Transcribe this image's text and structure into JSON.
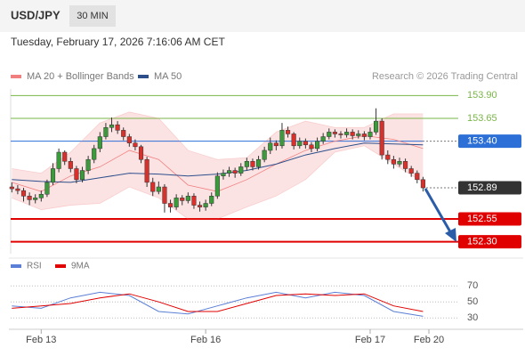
{
  "header": {
    "symbol": "USD/JPY",
    "timeframe": "30 MIN",
    "datetime": "Tuesday, February 17, 2026 7:16:06 AM CET"
  },
  "chart_data": [
    {
      "type": "candlestick",
      "attribution": "Research © 2026 Trading Central",
      "up_color": "#3a9b3a",
      "down_color": "#d9302c",
      "xlim": [
        -0.5,
        76
      ],
      "ylim": [
        152.17,
        154.02
      ],
      "xticks": [
        {
          "value": 5,
          "label": "Feb 13"
        },
        {
          "value": 33,
          "label": "Feb 16"
        },
        {
          "value": 61,
          "label": "Feb 17"
        },
        {
          "value": 71,
          "label": "Feb 20"
        }
      ],
      "levels": [
        {
          "value": 153.9,
          "label": "153.90",
          "color": "#7ab648",
          "style": "text",
          "width": 1
        },
        {
          "value": 153.65,
          "label": "153.65",
          "color": "#7ab648",
          "style": "text",
          "width": 1
        },
        {
          "value": 153.4,
          "label": "153.40",
          "color": "#2c6fd6",
          "style": "box",
          "width": 1
        },
        {
          "value": 152.89,
          "label": "152.89",
          "color": "#333333",
          "style": "box",
          "width": 0
        },
        {
          "value": 152.55,
          "label": "152.55",
          "color": "#e00000",
          "style": "box",
          "width": 2
        },
        {
          "value": 152.3,
          "label": "152.30",
          "color": "#e00000",
          "style": "box",
          "width": 2
        }
      ],
      "candles": [
        [
          152.9,
          152.95,
          152.84,
          152.88
        ],
        [
          152.88,
          152.92,
          152.82,
          152.86
        ],
        [
          152.86,
          152.89,
          152.74,
          152.8
        ],
        [
          152.8,
          152.84,
          152.7,
          152.76
        ],
        [
          152.76,
          152.82,
          152.72,
          152.78
        ],
        [
          152.78,
          152.86,
          152.74,
          152.82
        ],
        [
          152.82,
          152.98,
          152.79,
          152.95
        ],
        [
          152.95,
          153.16,
          152.92,
          153.1
        ],
        [
          153.1,
          153.32,
          153.06,
          153.28
        ],
        [
          153.28,
          153.3,
          153.14,
          153.18
        ],
        [
          153.18,
          153.22,
          153.06,
          153.1
        ],
        [
          153.1,
          153.13,
          152.94,
          152.98
        ],
        [
          152.98,
          153.12,
          152.95,
          153.08
        ],
        [
          153.08,
          153.24,
          153.04,
          153.2
        ],
        [
          153.2,
          153.36,
          153.16,
          153.32
        ],
        [
          153.32,
          153.5,
          153.28,
          153.45
        ],
        [
          153.45,
          153.6,
          153.42,
          153.55
        ],
        [
          153.55,
          153.66,
          153.5,
          153.58
        ],
        [
          153.58,
          153.62,
          153.48,
          153.52
        ],
        [
          153.52,
          153.55,
          153.41,
          153.45
        ],
        [
          153.45,
          153.48,
          153.34,
          153.38
        ],
        [
          153.38,
          153.42,
          153.3,
          153.34
        ],
        [
          153.34,
          153.36,
          153.16,
          153.2
        ],
        [
          153.2,
          153.23,
          152.9,
          152.95
        ],
        [
          152.95,
          153.0,
          152.8,
          152.85
        ],
        [
          152.85,
          152.96,
          152.82,
          152.9
        ],
        [
          152.9,
          152.93,
          152.62,
          152.72
        ],
        [
          152.72,
          152.76,
          152.62,
          152.68
        ],
        [
          152.68,
          152.82,
          152.65,
          152.78
        ],
        [
          152.78,
          152.81,
          152.7,
          152.75
        ],
        [
          152.75,
          152.84,
          152.72,
          152.8
        ],
        [
          152.8,
          152.83,
          152.66,
          152.7
        ],
        [
          152.7,
          152.74,
          152.63,
          152.68
        ],
        [
          152.68,
          152.76,
          152.64,
          152.72
        ],
        [
          152.72,
          152.84,
          152.69,
          152.8
        ],
        [
          152.8,
          153.06,
          152.77,
          153.02
        ],
        [
          153.02,
          153.09,
          152.98,
          153.05
        ],
        [
          153.05,
          153.12,
          153.01,
          153.08
        ],
        [
          153.08,
          153.11,
          153.0,
          153.05
        ],
        [
          153.05,
          153.16,
          153.02,
          153.12
        ],
        [
          153.12,
          153.22,
          153.08,
          153.18
        ],
        [
          153.18,
          153.21,
          153.08,
          153.12
        ],
        [
          153.12,
          153.24,
          153.09,
          153.2
        ],
        [
          153.2,
          153.34,
          153.17,
          153.3
        ],
        [
          153.3,
          153.44,
          153.26,
          153.38
        ],
        [
          153.38,
          153.41,
          153.3,
          153.35
        ],
        [
          153.35,
          153.6,
          153.32,
          153.52
        ],
        [
          153.52,
          153.56,
          153.44,
          153.48
        ],
        [
          153.48,
          153.5,
          153.31,
          153.35
        ],
        [
          153.35,
          153.44,
          153.32,
          153.4
        ],
        [
          153.4,
          153.43,
          153.32,
          153.36
        ],
        [
          153.36,
          153.39,
          153.28,
          153.32
        ],
        [
          153.32,
          153.44,
          153.29,
          153.4
        ],
        [
          153.4,
          153.49,
          153.37,
          153.45
        ],
        [
          153.45,
          153.54,
          153.42,
          153.5
        ],
        [
          153.5,
          153.53,
          153.44,
          153.48
        ],
        [
          153.48,
          153.51,
          153.43,
          153.47
        ],
        [
          153.47,
          153.54,
          153.44,
          153.5
        ],
        [
          153.5,
          153.53,
          153.42,
          153.46
        ],
        [
          153.46,
          153.52,
          153.43,
          153.48
        ],
        [
          153.48,
          153.51,
          153.41,
          153.45
        ],
        [
          153.45,
          153.55,
          153.42,
          153.5
        ],
        [
          153.5,
          153.76,
          153.47,
          153.62
        ],
        [
          153.62,
          153.65,
          153.2,
          153.25
        ],
        [
          153.25,
          153.3,
          153.15,
          153.2
        ],
        [
          153.2,
          153.24,
          153.1,
          153.15
        ],
        [
          153.15,
          153.22,
          153.12,
          153.18
        ],
        [
          153.18,
          153.21,
          153.06,
          153.1
        ],
        [
          153.1,
          153.13,
          153.01,
          153.05
        ],
        [
          153.05,
          153.08,
          152.94,
          152.98
        ],
        [
          152.98,
          153.01,
          152.85,
          152.89
        ]
      ],
      "series": [
        {
          "name": "MA 20 + Bollinger Bands",
          "color": "#f08080",
          "x": [
            0,
            5,
            10,
            15,
            20,
            25,
            30,
            35,
            40,
            45,
            50,
            55,
            60,
            65,
            70
          ],
          "values": [
            152.95,
            152.85,
            153.02,
            153.12,
            153.3,
            153.2,
            152.92,
            152.85,
            152.98,
            153.15,
            153.3,
            153.4,
            153.46,
            153.42,
            153.32
          ],
          "upper": [
            153.1,
            153.05,
            153.28,
            153.6,
            153.72,
            153.65,
            153.3,
            153.2,
            153.22,
            153.5,
            153.62,
            153.55,
            153.55,
            153.7,
            153.7
          ],
          "lower": [
            152.78,
            152.65,
            152.7,
            152.72,
            152.9,
            152.78,
            152.55,
            152.55,
            152.68,
            152.8,
            152.98,
            153.28,
            153.35,
            153.15,
            152.95
          ]
        },
        {
          "name": "MA 50",
          "color": "#2c4f8c",
          "x": [
            0,
            5,
            10,
            15,
            20,
            25,
            30,
            35,
            40,
            45,
            50,
            55,
            60,
            65,
            70
          ],
          "values": [
            152.98,
            152.96,
            152.95,
            153.0,
            153.05,
            153.04,
            153.02,
            153.04,
            153.08,
            153.15,
            153.25,
            153.32,
            153.38,
            153.37,
            153.36
          ]
        }
      ]
    },
    {
      "type": "line",
      "xlim": [
        -0.5,
        76
      ],
      "ylim": [
        18,
        88
      ],
      "yticks": [
        30,
        50,
        70
      ],
      "series": [
        {
          "name": "RSI",
          "color": "#5b7fd6",
          "x": [
            0,
            5,
            10,
            15,
            20,
            25,
            30,
            35,
            40,
            45,
            50,
            55,
            60,
            65,
            70
          ],
          "values": [
            45,
            42,
            55,
            62,
            58,
            38,
            35,
            45,
            55,
            62,
            55,
            62,
            58,
            38,
            32
          ]
        },
        {
          "name": "9MA",
          "color": "#e00000",
          "x": [
            0,
            5,
            10,
            15,
            20,
            25,
            30,
            35,
            40,
            45,
            50,
            55,
            60,
            65,
            70
          ],
          "values": [
            42,
            45,
            48,
            55,
            60,
            50,
            38,
            38,
            48,
            58,
            60,
            58,
            60,
            45,
            38
          ]
        }
      ]
    }
  ]
}
